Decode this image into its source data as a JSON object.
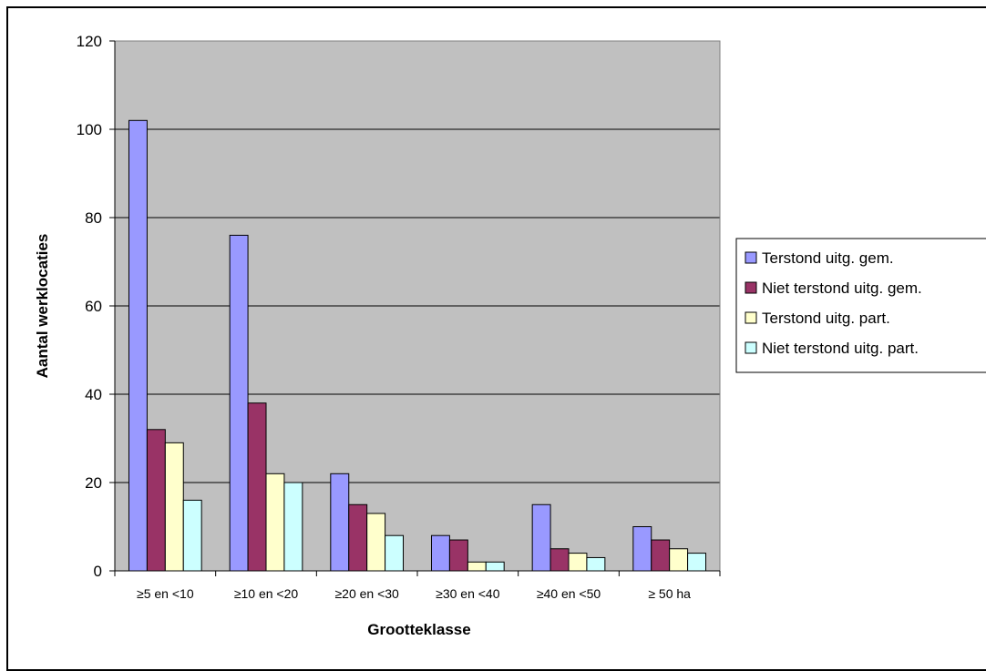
{
  "chart_data": {
    "type": "bar",
    "title": "",
    "xlabel": "Grootteklasse",
    "ylabel": "Aantal werklocaties",
    "ylim": [
      0,
      120
    ],
    "yticks": [
      0,
      20,
      40,
      60,
      80,
      100,
      120
    ],
    "grid": true,
    "legend_position": "right",
    "plot_background": "#c0c0c0",
    "categories": [
      "≥5 en <10",
      "≥10 en <20",
      "≥20 en <30",
      "≥30 en <40",
      "≥40 en <50",
      "≥ 50 ha"
    ],
    "series": [
      {
        "name": "Terstond uitg. gem.",
        "color": "#9999ff",
        "values": [
          102,
          76,
          22,
          8,
          15,
          10
        ]
      },
      {
        "name": "Niet terstond uitg. gem.",
        "color": "#993366",
        "values": [
          32,
          38,
          15,
          7,
          5,
          7
        ]
      },
      {
        "name": "Terstond uitg. part.",
        "color": "#ffffcc",
        "values": [
          29,
          22,
          13,
          2,
          4,
          5
        ]
      },
      {
        "name": "Niet terstond uitg. part.",
        "color": "#ccffff",
        "values": [
          16,
          20,
          8,
          2,
          3,
          4
        ]
      }
    ]
  }
}
